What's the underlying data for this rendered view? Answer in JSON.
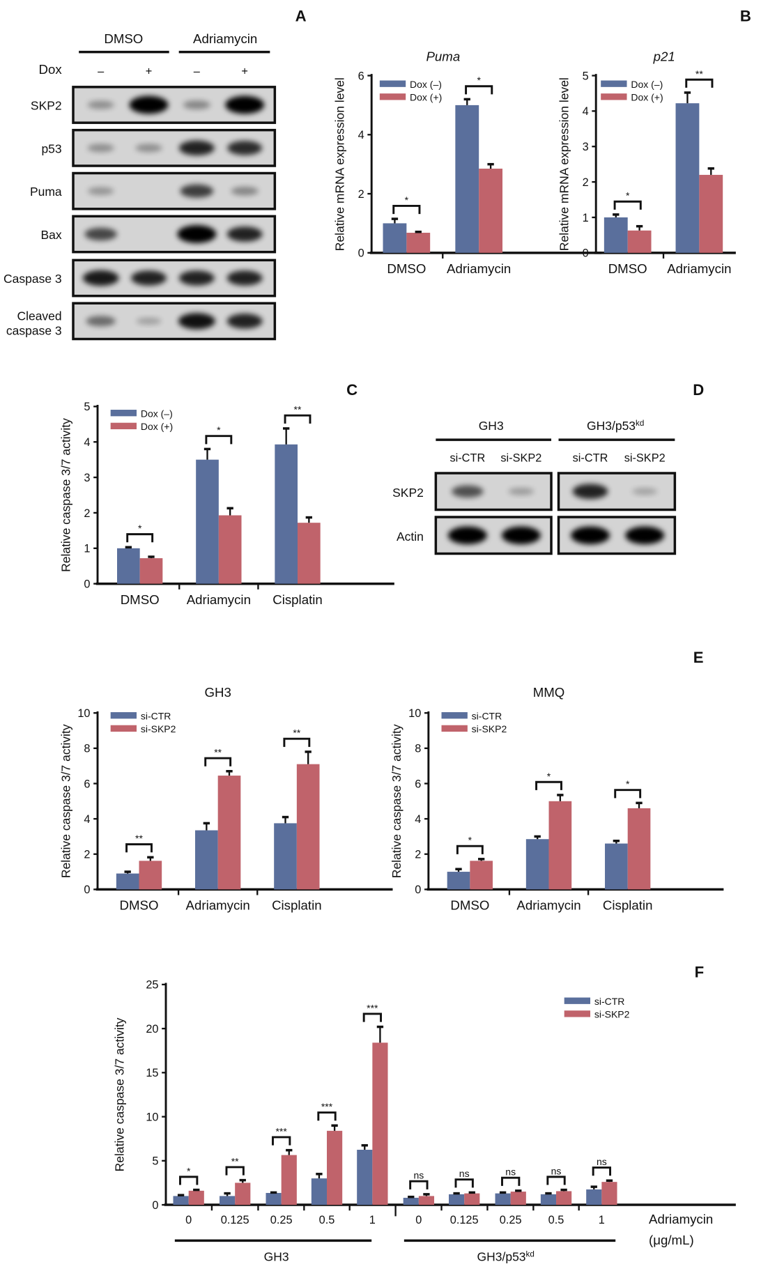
{
  "colors": {
    "series1": "#5a6f9c",
    "series2": "#c0636b",
    "axis": "#111111"
  },
  "panel_letters": [
    "A",
    "B",
    "C",
    "D",
    "E",
    "F"
  ],
  "blot_A": {
    "group_headers": [
      "DMSO",
      "Adriamycin"
    ],
    "dox_label": "Dox",
    "lane_signs": [
      "–",
      "+",
      "–",
      "+"
    ],
    "rows": [
      {
        "label": "SKP2",
        "intensities": [
          0.15,
          1.0,
          0.2,
          1.0
        ]
      },
      {
        "label": "p53",
        "intensities": [
          0.15,
          0.15,
          0.75,
          0.7
        ]
      },
      {
        "label": "Puma",
        "intensities": [
          0.12,
          0.0,
          0.6,
          0.2
        ]
      },
      {
        "label": "Bax",
        "intensities": [
          0.55,
          0.0,
          1.0,
          0.75
        ]
      },
      {
        "label": "Caspase 3",
        "intensities": [
          0.8,
          0.75,
          0.75,
          0.75
        ]
      },
      {
        "label": "Cleaved caspase 3",
        "label_lines": [
          "Cleaved",
          "caspase 3"
        ],
        "intensities": [
          0.35,
          0.05,
          0.85,
          0.75
        ]
      }
    ]
  },
  "blot_D": {
    "group_headers": [
      "GH3",
      "GH3/p53",
      "kd"
    ],
    "lane_labels": [
      "si-CTR",
      "si-SKP2",
      "si-CTR",
      "si-SKP2"
    ],
    "rows": [
      {
        "label": "SKP2",
        "intensities": [
          0.5,
          0.08,
          0.75,
          0.04
        ]
      },
      {
        "label": "Actin",
        "intensities": [
          1.0,
          1.0,
          1.0,
          1.0
        ]
      }
    ]
  },
  "chart_data": [
    {
      "id": "puma",
      "type": "bar",
      "title": "Puma",
      "ylabel": "Relative mRNA expression level",
      "ylim": [
        0,
        6
      ],
      "yticks": [
        0,
        2,
        4,
        6
      ],
      "categories": [
        "DMSO",
        "Adriamycin"
      ],
      "series": [
        {
          "name": "Dox (–)",
          "values": [
            1.0,
            5.0
          ],
          "errors": [
            0.15,
            0.2
          ]
        },
        {
          "name": "Dox (+)",
          "values": [
            0.68,
            2.85
          ],
          "errors": [
            0.03,
            0.15
          ]
        }
      ],
      "significance": [
        "*",
        "*"
      ],
      "legend": "top-left"
    },
    {
      "id": "p21",
      "type": "bar",
      "title": "p21",
      "ylabel": "Relative mRNA expression level",
      "ylim": [
        0,
        5
      ],
      "yticks": [
        0,
        1,
        2,
        3,
        4,
        5
      ],
      "categories": [
        "DMSO",
        "Adriamycin"
      ],
      "series": [
        {
          "name": "Dox (–)",
          "values": [
            1.0,
            4.22
          ],
          "errors": [
            0.08,
            0.3
          ]
        },
        {
          "name": "Dox (+)",
          "values": [
            0.63,
            2.2
          ],
          "errors": [
            0.12,
            0.18
          ]
        }
      ],
      "significance": [
        "*",
        "**"
      ],
      "legend": "top-left"
    },
    {
      "id": "c",
      "type": "bar",
      "title": "",
      "ylabel": "Relative caspase 3/7 activity",
      "ylim": [
        0,
        5
      ],
      "yticks": [
        0,
        1,
        2,
        3,
        4,
        5
      ],
      "categories": [
        "DMSO",
        "Adriamycin",
        "Cisplatin"
      ],
      "series": [
        {
          "name": "Dox (–)",
          "values": [
            1.0,
            3.5,
            3.93
          ],
          "errors": [
            0.03,
            0.3,
            0.45
          ]
        },
        {
          "name": "Dox (+)",
          "values": [
            0.72,
            1.93,
            1.72
          ],
          "errors": [
            0.04,
            0.2,
            0.15
          ]
        }
      ],
      "significance": [
        "*",
        "*",
        "**"
      ],
      "legend": "top-left"
    },
    {
      "id": "e_gh3",
      "type": "bar",
      "title": "GH3",
      "ylabel": "Relative caspase 3/7 activity",
      "ylim": [
        0,
        10
      ],
      "yticks": [
        0,
        2,
        4,
        6,
        8,
        10
      ],
      "categories": [
        "DMSO",
        "Adriamycin",
        "Cisplatin"
      ],
      "series": [
        {
          "name": "si-CTR",
          "values": [
            0.9,
            3.35,
            3.75
          ],
          "errors": [
            0.1,
            0.4,
            0.35
          ]
        },
        {
          "name": "si-SKP2",
          "values": [
            1.62,
            6.45,
            7.1
          ],
          "errors": [
            0.2,
            0.25,
            0.7
          ]
        }
      ],
      "significance": [
        "**",
        "**",
        "**"
      ],
      "legend": "top-left"
    },
    {
      "id": "e_mmq",
      "type": "bar",
      "title": "MMQ",
      "ylabel": "Relative caspase 3/7 activity",
      "ylim": [
        0,
        10
      ],
      "yticks": [
        0,
        2,
        4,
        6,
        8,
        10
      ],
      "categories": [
        "DMSO",
        "Adriamycin",
        "Cisplatin"
      ],
      "series": [
        {
          "name": "si-CTR",
          "values": [
            1.0,
            2.85,
            2.6
          ],
          "errors": [
            0.15,
            0.15,
            0.15
          ]
        },
        {
          "name": "si-SKP2",
          "values": [
            1.62,
            5.0,
            4.6
          ],
          "errors": [
            0.1,
            0.35,
            0.3
          ]
        }
      ],
      "significance": [
        "*",
        "*",
        "*"
      ],
      "legend": "top-left"
    },
    {
      "id": "f",
      "type": "bar",
      "title": "",
      "ylabel": "Relative caspase 3/7 activity",
      "ylim": [
        0,
        25
      ],
      "yticks": [
        0,
        5,
        10,
        15,
        20,
        25
      ],
      "categories": [
        "0",
        "0.125",
        "0.25",
        "0.5",
        "1",
        "0",
        "0.125",
        "0.25",
        "0.5",
        "1"
      ],
      "xlabel_lines": [
        "Adriamycin",
        "(μg/mL)"
      ],
      "group_labels": [
        "GH3",
        "GH3/p53",
        "kd"
      ],
      "series": [
        {
          "name": "si-CTR",
          "values": [
            1.0,
            1.0,
            1.35,
            3.0,
            6.25,
            0.8,
            1.2,
            1.3,
            1.2,
            1.75
          ],
          "errors": [
            0.1,
            0.3,
            0.05,
            0.5,
            0.5,
            0.1,
            0.1,
            0.1,
            0.1,
            0.3
          ]
        },
        {
          "name": "si-SKP2",
          "values": [
            1.6,
            2.5,
            5.65,
            8.4,
            18.4,
            1.0,
            1.3,
            1.5,
            1.55,
            2.6
          ],
          "errors": [
            0.1,
            0.3,
            0.55,
            0.6,
            1.8,
            0.2,
            0.1,
            0.1,
            0.15,
            0.15
          ]
        }
      ],
      "significance": [
        "*",
        "**",
        "***",
        "***",
        "***",
        "ns",
        "ns",
        "ns",
        "ns",
        "ns"
      ],
      "legend": "top-right"
    }
  ]
}
